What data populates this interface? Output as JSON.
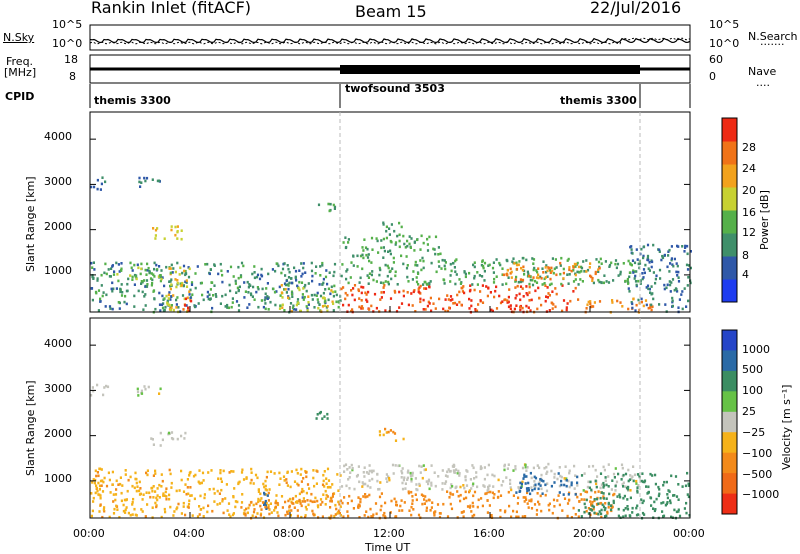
{
  "header": {
    "title": "Rankin Inlet (fitACF)",
    "beam": "Beam 15",
    "date": "22/Jul/2016"
  },
  "side_labels": {
    "nsky": "N.Sky",
    "freq_line1": "Freq.",
    "freq_line2": "[MHz]",
    "cpid": "CPID",
    "nsearch": "N.Search",
    "nave": "Nave"
  },
  "strip_ticks": {
    "noise_left_top": "10^5",
    "noise_left_bottom": "10^0",
    "noise_right_top": "10^5",
    "noise_right_bottom": "10^0",
    "freq_left_top": "18",
    "freq_left_bottom": "8",
    "nave_right_top": "60",
    "nave_right_bottom": "0"
  },
  "cpid_segments": [
    {
      "label": "themis 3300",
      "start_hour": 0,
      "end_hour": 10
    },
    {
      "label": "twofsound 3503",
      "start_hour": 10,
      "end_hour": 22
    },
    {
      "label": "themis 3300",
      "start_hour": 22,
      "end_hour": 24
    }
  ],
  "axes": {
    "ylabel": "Slant Range [km]",
    "xlabel": "Time UT",
    "x_ticks": [
      "00:00",
      "04:00",
      "08:00",
      "12:00",
      "16:00",
      "20:00",
      "00:00"
    ],
    "y_ticks": [
      "1000",
      "2000",
      "3000",
      "4000"
    ]
  },
  "colorbars": {
    "power": {
      "label": "Power [dB]",
      "ticks": [
        "4",
        "8",
        "12",
        "16",
        "20",
        "24",
        "28"
      ],
      "colors": [
        "#1e3cf0",
        "#2f58a8",
        "#3f8f6a",
        "#55b04a",
        "#c7d132",
        "#f2a21d",
        "#f07318",
        "#ee2a14"
      ]
    },
    "velocity": {
      "label": "Velocity [m s⁻¹]",
      "ticks": [
        "1000",
        "500",
        "100",
        "25",
        "−25",
        "−100",
        "−500",
        "−1000"
      ],
      "colors": [
        "#2545c8",
        "#2a6aa6",
        "#3b8d62",
        "#66c246",
        "#c4c4bc",
        "#f5b21a",
        "#f38a1a",
        "#f06a18",
        "#ee2e16"
      ]
    }
  },
  "chart_data": {
    "type": "heatmap",
    "title": "Rankin Inlet (fitACF)",
    "x_unit": "hours UT",
    "xlim": [
      0,
      24
    ],
    "ylim": [
      180,
      4600
    ],
    "xlabel": "Time UT",
    "ylabel": "Slant Range [km]",
    "grid": false,
    "power_patches": [
      {
        "t0": 0.0,
        "t1": 10.0,
        "r0": 200,
        "r1": 1300,
        "level": 10
      },
      {
        "t0": 3.0,
        "t1": 4.0,
        "r0": 200,
        "r1": 1200,
        "level": 20
      },
      {
        "t0": 3.6,
        "t1": 4.0,
        "r0": 200,
        "r1": 500,
        "level": 28
      },
      {
        "t0": 1.0,
        "t1": 3.2,
        "r0": 900,
        "r1": 1300,
        "level": 14
      },
      {
        "t0": 0.0,
        "t1": 0.7,
        "r0": 2900,
        "r1": 3200,
        "level": 8
      },
      {
        "t0": 1.8,
        "t1": 2.8,
        "r0": 2900,
        "r1": 3200,
        "level": 8
      },
      {
        "t0": 2.4,
        "t1": 3.8,
        "r0": 1800,
        "r1": 2100,
        "level": 20
      },
      {
        "t0": 7.5,
        "t1": 8.7,
        "r0": 200,
        "r1": 800,
        "level": 18
      },
      {
        "t0": 9.0,
        "t1": 9.7,
        "r0": 200,
        "r1": 700,
        "level": 20
      },
      {
        "t0": 9.0,
        "t1": 9.8,
        "r0": 2400,
        "r1": 2600,
        "level": 12
      },
      {
        "t0": 10.0,
        "t1": 19.5,
        "r0": 200,
        "r1": 800,
        "level": 28
      },
      {
        "t0": 10.0,
        "t1": 22.0,
        "r0": 800,
        "r1": 1400,
        "level": 12
      },
      {
        "t0": 16.5,
        "t1": 20.5,
        "r0": 900,
        "r1": 1300,
        "level": 24
      },
      {
        "t0": 19.5,
        "t1": 22.5,
        "r0": 200,
        "r1": 500,
        "level": 24
      },
      {
        "t0": 10.0,
        "t1": 14.0,
        "r0": 1400,
        "r1": 1900,
        "level": 12
      },
      {
        "t0": 11.5,
        "t1": 12.5,
        "r0": 1900,
        "r1": 2200,
        "level": 12
      },
      {
        "t0": 21.5,
        "t1": 24.0,
        "r0": 200,
        "r1": 1700,
        "level": 8
      }
    ],
    "velocity_patches": [
      {
        "t0": 0.0,
        "t1": 10.0,
        "r0": 200,
        "r1": 1300,
        "level": -80
      },
      {
        "t0": 0.0,
        "t1": 0.7,
        "r0": 2900,
        "r1": 3200,
        "level": 0
      },
      {
        "t0": 1.8,
        "t1": 2.8,
        "r0": 2900,
        "r1": 3200,
        "level": 0
      },
      {
        "t0": 2.4,
        "t1": 3.8,
        "r0": 1800,
        "r1": 2100,
        "level": 0
      },
      {
        "t0": 6.9,
        "t1": 7.2,
        "r0": 400,
        "r1": 800,
        "level": 800
      },
      {
        "t0": 9.0,
        "t1": 9.8,
        "r0": 2400,
        "r1": 2600,
        "level": 150
      },
      {
        "t0": 10.0,
        "t1": 21.0,
        "r0": 200,
        "r1": 800,
        "level": -150
      },
      {
        "t0": 10.0,
        "t1": 22.0,
        "r0": 800,
        "r1": 1400,
        "level": 0
      },
      {
        "t0": 17.0,
        "t1": 19.5,
        "r0": 700,
        "r1": 1200,
        "level": 600
      },
      {
        "t0": 19.5,
        "t1": 24.0,
        "r0": 200,
        "r1": 1200,
        "level": 200
      },
      {
        "t0": 11.5,
        "t1": 12.5,
        "r0": 1900,
        "r1": 2200,
        "level": -100
      },
      {
        "t0": 6.0,
        "t1": 10.0,
        "r0": 200,
        "r1": 600,
        "level": -300
      }
    ]
  }
}
